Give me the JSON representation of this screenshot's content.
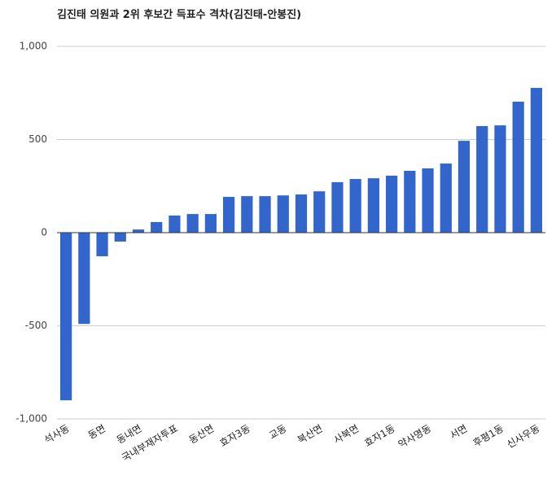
{
  "chart_data": {
    "type": "bar",
    "title": "김진태 의원과 2위 후보간 득표수 격차(김진태-안봉진)",
    "categories": [
      "석사동",
      null,
      "동면",
      null,
      "동내면",
      null,
      "국내부재자투표",
      null,
      "동산면",
      null,
      "효자3동",
      null,
      "교동",
      null,
      "북산면",
      null,
      "사북면",
      null,
      "효자1동",
      null,
      "약사명동",
      null,
      "서면",
      null,
      "후평1동",
      null,
      "신사우동"
    ],
    "values": [
      -900,
      -490,
      -127,
      -48,
      17,
      57,
      92,
      100,
      100,
      192,
      196,
      196,
      200,
      205,
      222,
      271,
      288,
      292,
      306,
      332,
      345,
      371,
      493,
      572,
      576,
      703,
      777
    ],
    "color": "#3366cc",
    "ylim": [
      -1000,
      1000
    ],
    "yticks": [
      {
        "value": -1000,
        "label": "-1,000"
      },
      -500,
      0,
      500,
      {
        "value": 1000,
        "label": "1,000"
      }
    ],
    "grid": true
  }
}
